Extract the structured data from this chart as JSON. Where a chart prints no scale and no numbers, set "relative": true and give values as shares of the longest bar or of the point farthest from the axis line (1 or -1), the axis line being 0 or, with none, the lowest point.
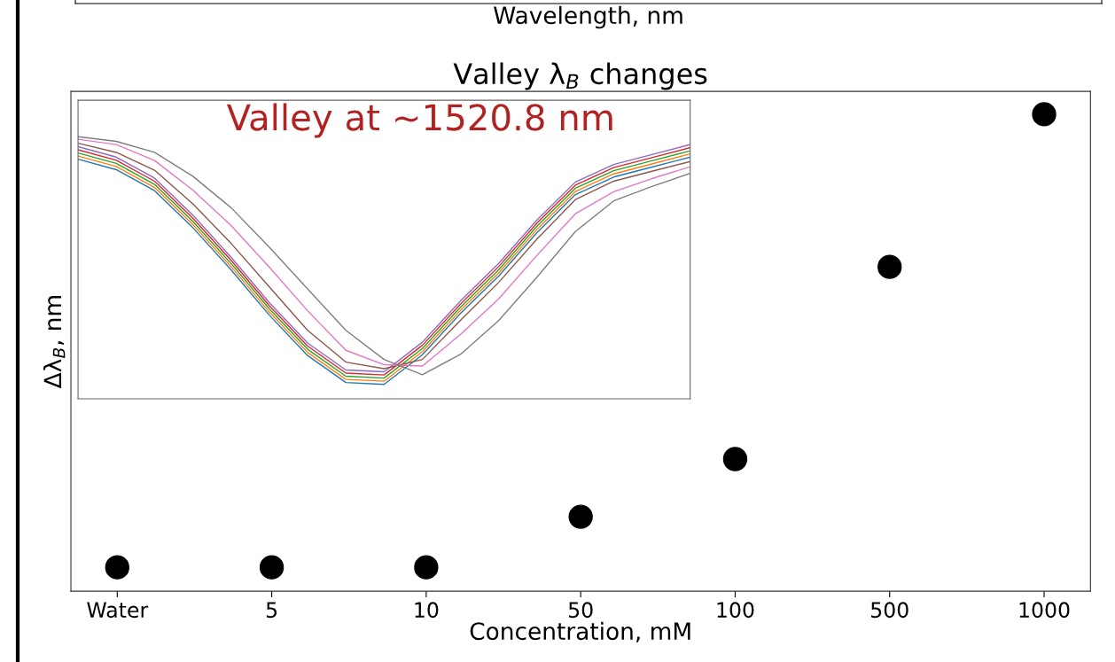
{
  "chart_data": [
    {
      "type": "other",
      "xlabel": "Wavelength, nm"
    },
    {
      "type": "scatter",
      "title": "Valley λ$_{B}$ changes",
      "xlabel": "Concentration, mM",
      "ylabel": "Δλ$_{B}$, nm",
      "relative": true,
      "tick_labels": "x",
      "marker": "circle",
      "categories": [
        "Water",
        "5",
        "10",
        "50",
        "100",
        "500",
        "1000"
      ],
      "series": [
        {
          "color": "#000000",
          "values": [
            0.05,
            0.05,
            0.05,
            0.156,
            0.277,
            0.68,
            1
          ]
        }
      ]
    },
    {
      "type": "line",
      "relative": true,
      "tick_labels": false,
      "annotations": [
        "Valley at ~1520.8 nm"
      ],
      "categories": [
        null,
        null,
        null,
        null,
        null,
        null,
        null,
        null,
        null,
        null,
        null,
        null,
        null,
        null,
        null,
        null,
        null
      ],
      "series": [
        {
          "color": "#1f77b4",
          "values": [
            0.914,
            0.874,
            0.794,
            0.653,
            0.492,
            0.319,
            0.165,
            0.062,
            0.055,
            0.168,
            0.326,
            0.469,
            0.635,
            0.779,
            0.846,
            0.884,
            0.922
          ]
        },
        {
          "color": "#ff7f0e",
          "values": [
            0.926,
            0.886,
            0.806,
            0.665,
            0.504,
            0.331,
            0.177,
            0.074,
            0.067,
            0.18,
            0.338,
            0.481,
            0.647,
            0.791,
            0.858,
            0.896,
            0.934
          ]
        },
        {
          "color": "#2ca02c",
          "values": [
            0.938,
            0.898,
            0.818,
            0.677,
            0.516,
            0.343,
            0.189,
            0.086,
            0.079,
            0.192,
            0.35,
            0.493,
            0.659,
            0.803,
            0.87,
            0.908,
            0.946
          ]
        },
        {
          "color": "#d62728",
          "values": [
            0.95,
            0.91,
            0.83,
            0.689,
            0.528,
            0.355,
            0.201,
            0.098,
            0.091,
            0.204,
            0.362,
            0.505,
            0.671,
            0.815,
            0.882,
            0.92,
            0.958
          ]
        },
        {
          "color": "#9467bd",
          "values": [
            0.962,
            0.922,
            0.842,
            0.701,
            0.54,
            0.367,
            0.213,
            0.11,
            0.103,
            0.216,
            0.374,
            0.517,
            0.683,
            0.827,
            0.894,
            0.932,
            0.97
          ]
        },
        {
          "color": "#8c564b",
          "values": [
            0.975,
            0.94,
            0.872,
            0.744,
            0.593,
            0.427,
            0.261,
            0.14,
            0.115,
            0.15,
            0.3,
            0.445,
            0.61,
            0.76,
            0.83,
            0.868,
            0.905
          ]
        },
        {
          "color": "#e377c2",
          "values": [
            0.99,
            0.97,
            0.909,
            0.796,
            0.661,
            0.502,
            0.336,
            0.185,
            0.13,
            0.125,
            0.246,
            0.382,
            0.548,
            0.706,
            0.79,
            0.84,
            0.885
          ]
        },
        {
          "color": "#7f7f7f",
          "values": [
            1.0,
            0.982,
            0.94,
            0.849,
            0.729,
            0.578,
            0.419,
            0.261,
            0.15,
            0.092,
            0.17,
            0.299,
            0.465,
            0.638,
            0.755,
            0.81,
            0.86
          ]
        }
      ]
    }
  ]
}
